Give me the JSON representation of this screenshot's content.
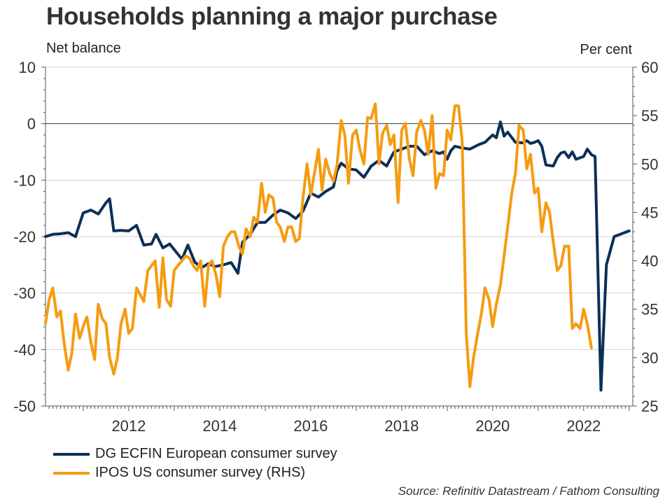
{
  "chart_data": {
    "type": "line",
    "title": "Households planning a major purchase",
    "left_axis_label": "Net balance",
    "right_axis_label": "Per cent",
    "source": "Source: Refinitiv Datastream / Fathom Consulting",
    "x_range": [
      2010.17,
      2023.08
    ],
    "x_ticks": [
      2012,
      2014,
      2016,
      2018,
      2020,
      2022
    ],
    "y_left": {
      "min": -50,
      "max": 10,
      "ticks": [
        10,
        0,
        -10,
        -20,
        -30,
        -40,
        -50
      ]
    },
    "y_right": {
      "min": 25,
      "max": 60,
      "ticks": [
        60,
        55,
        50,
        45,
        40,
        35,
        30,
        25
      ]
    },
    "grid": true,
    "zero_line": true,
    "legend_position": "bottom-left",
    "series": [
      {
        "name": "DG ECFIN European consumer survey",
        "axis": "left",
        "color": "#0c2f57",
        "points": [
          [
            2010.17,
            -20.0
          ],
          [
            2010.33,
            -19.6
          ],
          [
            2010.5,
            -19.5
          ],
          [
            2010.67,
            -19.3
          ],
          [
            2010.83,
            -20.0
          ],
          [
            2011.0,
            -15.8
          ],
          [
            2011.17,
            -15.3
          ],
          [
            2011.33,
            -16.0
          ],
          [
            2011.5,
            -14.0
          ],
          [
            2011.58,
            -13.3
          ],
          [
            2011.67,
            -19.0
          ],
          [
            2011.83,
            -18.9
          ],
          [
            2012.0,
            -19.0
          ],
          [
            2012.17,
            -18.0
          ],
          [
            2012.33,
            -21.5
          ],
          [
            2012.5,
            -21.3
          ],
          [
            2012.6,
            -19.6
          ],
          [
            2012.75,
            -22.0
          ],
          [
            2012.9,
            -21.3
          ],
          [
            2013.0,
            -22.3
          ],
          [
            2013.17,
            -24.0
          ],
          [
            2013.3,
            -21.5
          ],
          [
            2013.45,
            -24.5
          ],
          [
            2013.6,
            -25.5
          ],
          [
            2013.75,
            -24.8
          ],
          [
            2013.9,
            -25.3
          ],
          [
            2014.08,
            -25.0
          ],
          [
            2014.25,
            -24.6
          ],
          [
            2014.4,
            -26.5
          ],
          [
            2014.5,
            -21.0
          ],
          [
            2014.67,
            -19.6
          ],
          [
            2014.83,
            -17.5
          ],
          [
            2015.0,
            -17.5
          ],
          [
            2015.17,
            -16.2
          ],
          [
            2015.33,
            -15.3
          ],
          [
            2015.5,
            -15.8
          ],
          [
            2015.67,
            -16.8
          ],
          [
            2015.83,
            -15.5
          ],
          [
            2016.0,
            -12.3
          ],
          [
            2016.17,
            -13.0
          ],
          [
            2016.33,
            -12.0
          ],
          [
            2016.5,
            -11.2
          ],
          [
            2016.58,
            -8.3
          ],
          [
            2016.67,
            -7.0
          ],
          [
            2016.83,
            -8.0
          ],
          [
            2017.0,
            -8.2
          ],
          [
            2017.17,
            -9.5
          ],
          [
            2017.33,
            -7.5
          ],
          [
            2017.5,
            -6.5
          ],
          [
            2017.67,
            -7.5
          ],
          [
            2017.83,
            -5.0
          ],
          [
            2018.0,
            -4.5
          ],
          [
            2018.17,
            -4.0
          ],
          [
            2018.33,
            -4.0
          ],
          [
            2018.5,
            -5.5
          ],
          [
            2018.67,
            -4.8
          ],
          [
            2018.83,
            -5.3
          ],
          [
            2018.92,
            -5.0
          ],
          [
            2019.0,
            -6.3
          ],
          [
            2019.08,
            -4.8
          ],
          [
            2019.17,
            -4.0
          ],
          [
            2019.33,
            -4.3
          ],
          [
            2019.5,
            -4.5
          ],
          [
            2019.67,
            -3.8
          ],
          [
            2019.83,
            -3.3
          ],
          [
            2020.0,
            -2.0
          ],
          [
            2020.08,
            -2.5
          ],
          [
            2020.17,
            0.3
          ],
          [
            2020.25,
            -2.2
          ],
          [
            2020.33,
            -1.5
          ],
          [
            2020.5,
            -3.3
          ],
          [
            2020.67,
            -3.4
          ],
          [
            2020.75,
            -3.0
          ],
          [
            2020.83,
            -3.5
          ],
          [
            2020.92,
            -3.3
          ],
          [
            2021.0,
            -3.0
          ],
          [
            2021.08,
            -4.0
          ],
          [
            2021.17,
            -7.3
          ],
          [
            2021.33,
            -7.5
          ],
          [
            2021.42,
            -6.0
          ],
          [
            2021.5,
            -5.2
          ],
          [
            2021.58,
            -5.0
          ],
          [
            2021.67,
            -6.0
          ],
          [
            2021.75,
            -5.0
          ],
          [
            2021.83,
            -6.3
          ],
          [
            2022.0,
            -5.8
          ],
          [
            2022.08,
            -4.5
          ],
          [
            2022.17,
            -5.5
          ],
          [
            2022.25,
            -5.8
          ],
          [
            2022.38,
            -47.2
          ],
          [
            2022.5,
            -25.0
          ],
          [
            2022.67,
            -20.0
          ],
          [
            2022.83,
            -19.5
          ],
          [
            2023.0,
            -19.0
          ]
        ]
      },
      {
        "name": "IPOS US consumer survey (RHS)",
        "axis": "right",
        "color": "#f59c12",
        "points": [
          [
            2010.17,
            33.5
          ],
          [
            2010.25,
            36.0
          ],
          [
            2010.33,
            37.2
          ],
          [
            2010.42,
            34.2
          ],
          [
            2010.5,
            34.8
          ],
          [
            2010.58,
            31.5
          ],
          [
            2010.67,
            28.7
          ],
          [
            2010.75,
            30.5
          ],
          [
            2010.83,
            34.5
          ],
          [
            2010.92,
            32.0
          ],
          [
            2011.0,
            33.2
          ],
          [
            2011.08,
            34.2
          ],
          [
            2011.17,
            31.5
          ],
          [
            2011.25,
            29.8
          ],
          [
            2011.33,
            35.5
          ],
          [
            2011.42,
            34.0
          ],
          [
            2011.5,
            33.5
          ],
          [
            2011.58,
            30.0
          ],
          [
            2011.67,
            28.3
          ],
          [
            2011.75,
            30.0
          ],
          [
            2011.83,
            33.5
          ],
          [
            2011.92,
            35.0
          ],
          [
            2012.0,
            32.5
          ],
          [
            2012.08,
            33.0
          ],
          [
            2012.17,
            37.2
          ],
          [
            2012.25,
            36.5
          ],
          [
            2012.33,
            35.8
          ],
          [
            2012.42,
            39.0
          ],
          [
            2012.5,
            39.5
          ],
          [
            2012.58,
            40.0
          ],
          [
            2012.67,
            35.2
          ],
          [
            2012.75,
            40.3
          ],
          [
            2012.83,
            36.0
          ],
          [
            2012.92,
            35.3
          ],
          [
            2013.0,
            39.0
          ],
          [
            2013.08,
            39.5
          ],
          [
            2013.17,
            40.0
          ],
          [
            2013.25,
            40.5
          ],
          [
            2013.33,
            40.3
          ],
          [
            2013.42,
            39.5
          ],
          [
            2013.5,
            39.0
          ],
          [
            2013.58,
            40.0
          ],
          [
            2013.67,
            35.3
          ],
          [
            2013.75,
            39.5
          ],
          [
            2013.83,
            40.0
          ],
          [
            2013.92,
            38.5
          ],
          [
            2014.0,
            36.3
          ],
          [
            2014.08,
            41.5
          ],
          [
            2014.17,
            42.5
          ],
          [
            2014.25,
            43.0
          ],
          [
            2014.33,
            43.0
          ],
          [
            2014.42,
            41.5
          ],
          [
            2014.5,
            40.7
          ],
          [
            2014.58,
            43.3
          ],
          [
            2014.67,
            42.5
          ],
          [
            2014.75,
            44.5
          ],
          [
            2014.83,
            44.0
          ],
          [
            2014.92,
            48.0
          ],
          [
            2015.0,
            45.0
          ],
          [
            2015.08,
            46.8
          ],
          [
            2015.17,
            46.5
          ],
          [
            2015.25,
            44.0
          ],
          [
            2015.33,
            43.5
          ],
          [
            2015.42,
            42.0
          ],
          [
            2015.5,
            43.5
          ],
          [
            2015.58,
            43.5
          ],
          [
            2015.67,
            42.0
          ],
          [
            2015.75,
            42.3
          ],
          [
            2015.83,
            46.5
          ],
          [
            2015.92,
            50.0
          ],
          [
            2016.0,
            46.8
          ],
          [
            2016.08,
            49.0
          ],
          [
            2016.17,
            51.5
          ],
          [
            2016.25,
            47.3
          ],
          [
            2016.33,
            50.5
          ],
          [
            2016.42,
            49.0
          ],
          [
            2016.5,
            48.2
          ],
          [
            2016.58,
            50.0
          ],
          [
            2016.67,
            54.5
          ],
          [
            2016.75,
            53.0
          ],
          [
            2016.83,
            48.0
          ],
          [
            2016.92,
            53.0
          ],
          [
            2017.0,
            53.5
          ],
          [
            2017.08,
            51.5
          ],
          [
            2017.17,
            50.0
          ],
          [
            2017.25,
            54.8
          ],
          [
            2017.33,
            54.7
          ],
          [
            2017.42,
            56.2
          ],
          [
            2017.5,
            50.0
          ],
          [
            2017.58,
            53.2
          ],
          [
            2017.67,
            54.0
          ],
          [
            2017.75,
            52.0
          ],
          [
            2017.83,
            53.0
          ],
          [
            2017.92,
            46.0
          ],
          [
            2018.0,
            53.5
          ],
          [
            2018.08,
            54.2
          ],
          [
            2018.17,
            50.5
          ],
          [
            2018.25,
            48.8
          ],
          [
            2018.33,
            53.3
          ],
          [
            2018.42,
            54.5
          ],
          [
            2018.5,
            53.5
          ],
          [
            2018.58,
            51.0
          ],
          [
            2018.67,
            55.0
          ],
          [
            2018.75,
            47.5
          ],
          [
            2018.83,
            49.0
          ],
          [
            2018.92,
            48.8
          ],
          [
            2019.0,
            53.5
          ],
          [
            2019.08,
            52.5
          ],
          [
            2019.17,
            56.0
          ],
          [
            2019.25,
            56.0
          ],
          [
            2019.33,
            52.3
          ],
          [
            2019.42,
            32.5
          ],
          [
            2019.5,
            27.0
          ],
          [
            2019.58,
            30.0
          ],
          [
            2019.67,
            32.5
          ],
          [
            2019.75,
            34.5
          ],
          [
            2019.83,
            37.2
          ],
          [
            2019.92,
            36.0
          ],
          [
            2020.0,
            33.2
          ],
          [
            2020.08,
            35.5
          ],
          [
            2020.17,
            37.5
          ],
          [
            2020.25,
            40.5
          ],
          [
            2020.33,
            43.5
          ],
          [
            2020.42,
            47.0
          ],
          [
            2020.5,
            49.0
          ],
          [
            2020.58,
            54.0
          ],
          [
            2020.67,
            53.5
          ],
          [
            2020.75,
            49.5
          ],
          [
            2020.83,
            51.0
          ],
          [
            2020.92,
            47.0
          ],
          [
            2021.0,
            47.5
          ],
          [
            2021.08,
            43.0
          ],
          [
            2021.17,
            46.0
          ],
          [
            2021.25,
            45.0
          ],
          [
            2021.33,
            42.0
          ],
          [
            2021.42,
            39.0
          ],
          [
            2021.5,
            39.5
          ],
          [
            2021.58,
            41.5
          ],
          [
            2021.67,
            41.5
          ],
          [
            2021.75,
            33.0
          ],
          [
            2021.83,
            33.5
          ],
          [
            2021.92,
            33.0
          ],
          [
            2022.0,
            35.0
          ],
          [
            2022.08,
            33.5
          ],
          [
            2022.17,
            31.0
          ]
        ]
      }
    ]
  }
}
